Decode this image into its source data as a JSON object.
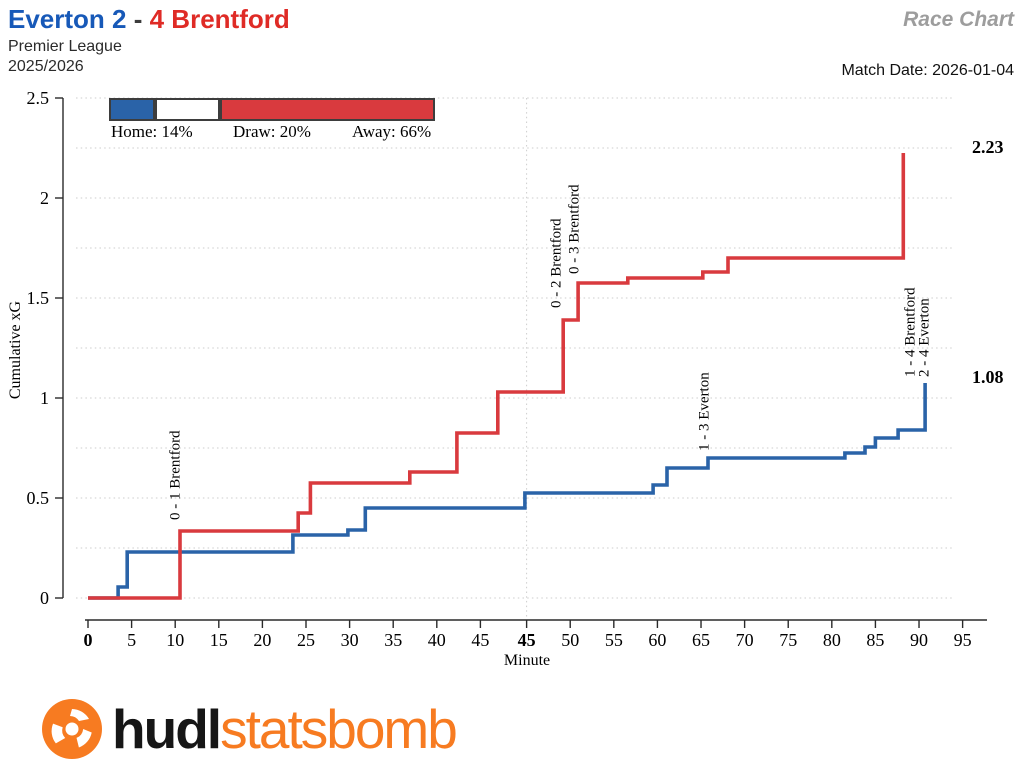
{
  "header": {
    "title_home": "Everton 2",
    "title_sep": " - ",
    "title_away": "4 Brentford",
    "competition": "Premier League",
    "season": "2025/2026",
    "chart_type": "Race Chart",
    "match_date": "Match Date: 2026-01-04"
  },
  "colors": {
    "home": "#2a63a8",
    "away": "#d93a3e",
    "title_home": "#1759b8",
    "title_away": "#df2b26",
    "grid": "#cdcdcd",
    "axis": "#2a2a2a",
    "race_chart_gray": "#9d9d9d",
    "logo_orange": "#f77b21",
    "draw_white": "#ffffff"
  },
  "legend": {
    "items": [
      {
        "label": "Home: 14%",
        "pct": 14,
        "color_key": "home"
      },
      {
        "label": "Draw: 20%",
        "pct": 20,
        "color_key": "draw_white"
      },
      {
        "label": "Away: 66%",
        "pct": 66,
        "color_key": "away"
      }
    ]
  },
  "chart_data": {
    "type": "line",
    "subtype": "step-after",
    "title": "Everton 2 - 4 Brentford",
    "xlabel": "Minute",
    "ylabel": "Cumulative xG",
    "ylim": [
      0,
      2.5
    ],
    "grid_step": 0.25,
    "grid_on": true,
    "halftime_elapsed": 50.3,
    "x_ticks": [
      {
        "label": "0",
        "e": 0,
        "bold": true
      },
      {
        "label": "5",
        "e": 5
      },
      {
        "label": "10",
        "e": 10
      },
      {
        "label": "15",
        "e": 15
      },
      {
        "label": "20",
        "e": 20
      },
      {
        "label": "25",
        "e": 25
      },
      {
        "label": "30",
        "e": 30
      },
      {
        "label": "35",
        "e": 35
      },
      {
        "label": "40",
        "e": 40
      },
      {
        "label": "45",
        "e": 45
      },
      {
        "label": "45",
        "e": 50.3,
        "bold": true
      },
      {
        "label": "50",
        "e": 55.3
      },
      {
        "label": "55",
        "e": 60.3
      },
      {
        "label": "60",
        "e": 65.3
      },
      {
        "label": "65",
        "e": 70.3
      },
      {
        "label": "70",
        "e": 75.3
      },
      {
        "label": "75",
        "e": 80.3
      },
      {
        "label": "80",
        "e": 85.3
      },
      {
        "label": "85",
        "e": 90.3
      },
      {
        "label": "90",
        "e": 95.3
      },
      {
        "label": "95",
        "e": 100.3
      }
    ],
    "y_ticks": [
      {
        "label": "0",
        "v": 0
      },
      {
        "label": "0.5",
        "v": 0.5
      },
      {
        "label": "1",
        "v": 1
      },
      {
        "label": "1.5",
        "v": 1.5
      },
      {
        "label": "2",
        "v": 2
      },
      {
        "label": "2.5",
        "v": 2.5
      }
    ],
    "series": [
      {
        "name": "Everton",
        "color_key": "home",
        "end_label": "1.08",
        "points": [
          [
            3.45,
            0.055
          ],
          [
            4.5,
            0.23
          ],
          [
            23.5,
            0.315
          ],
          [
            29.8,
            0.34
          ],
          [
            31.8,
            0.45
          ],
          [
            50.1,
            0.525
          ],
          [
            64.8,
            0.565
          ],
          [
            66.4,
            0.65
          ],
          [
            71.1,
            0.7
          ],
          [
            86.8,
            0.725
          ],
          [
            89.1,
            0.755
          ],
          [
            90.3,
            0.8
          ],
          [
            92.9,
            0.84
          ],
          [
            96.0,
            1.075
          ]
        ]
      },
      {
        "name": "Brentford",
        "color_key": "away",
        "end_label": "2.23",
        "points": [
          [
            10.55,
            0.335
          ],
          [
            24.1,
            0.425
          ],
          [
            25.5,
            0.575
          ],
          [
            36.9,
            0.63
          ],
          [
            42.3,
            0.825
          ],
          [
            47.0,
            1.03
          ],
          [
            54.5,
            1.39
          ],
          [
            56.2,
            1.575
          ],
          [
            61.9,
            1.6
          ],
          [
            70.5,
            1.63
          ],
          [
            73.4,
            1.7
          ],
          [
            93.5,
            2.225
          ]
        ]
      }
    ],
    "goal_labels": [
      {
        "text": "0 - 1 Brentford",
        "color_key": "away",
        "e": 9.9,
        "v": 0.39
      },
      {
        "text": "0 - 2 Brentford",
        "color_key": "away",
        "e": 53.6,
        "v": 1.45
      },
      {
        "text": "0 - 3 Brentford",
        "color_key": "away",
        "e": 55.7,
        "v": 1.62
      },
      {
        "text": "1 - 3 Everton",
        "color_key": "home",
        "e": 70.6,
        "v": 0.735
      },
      {
        "text": "1 - 4 Brentford",
        "color_key": "away",
        "e": 94.2,
        "v": 1.105
      },
      {
        "text": "2 - 4 Everton",
        "color_key": "home",
        "e": 95.8,
        "v": 1.105
      }
    ]
  },
  "footer": {
    "logo_bold": "hudl",
    "logo_light": "statsbomb"
  }
}
